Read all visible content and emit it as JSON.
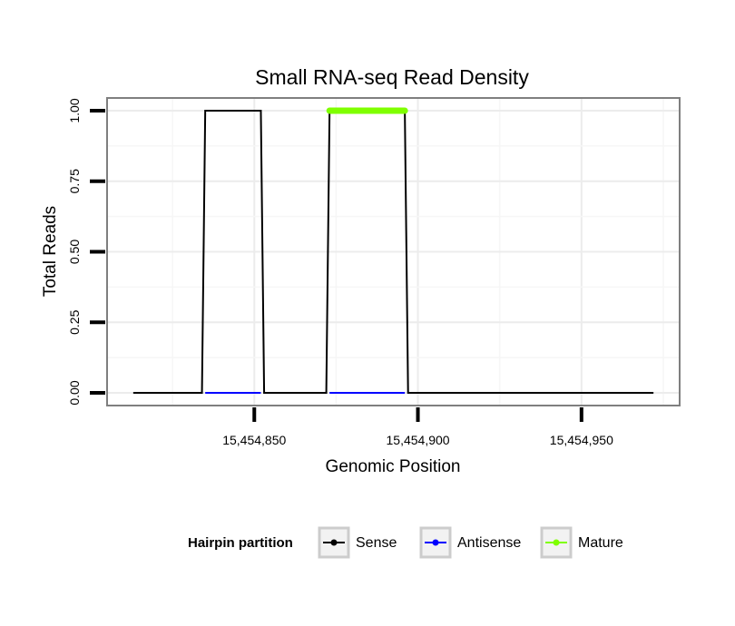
{
  "chart_data": {
    "type": "line",
    "title": "Small RNA-seq Read Density",
    "xlabel": "Genomic Position",
    "ylabel": "Total Reads",
    "xlim": [
      15454805,
      15454980
    ],
    "ylim": [
      -0.045,
      1.045
    ],
    "x_ticks": [
      15454850,
      15454900,
      15454950
    ],
    "x_tick_labels": [
      "15,454,850",
      "15,454,900",
      "15,454,950"
    ],
    "y_ticks": [
      0,
      0.25,
      0.5,
      0.75,
      1
    ],
    "y_tick_labels": [
      "0.00",
      "0.25",
      "0.50",
      "0.75",
      "1.00"
    ],
    "grid": true,
    "legend_position": "bottom",
    "legend_title": "Hairpin partition",
    "series": [
      {
        "name": "Sense",
        "color": "#000000",
        "x": [
          15454813,
          15454834,
          15454835,
          15454852,
          15454853,
          15454872,
          15454873,
          15454896,
          15454897,
          15454972
        ],
        "y": [
          0,
          0,
          1,
          1,
          0,
          0,
          1,
          1,
          0,
          0
        ]
      },
      {
        "name": "Antisense",
        "color": "#0000ff",
        "x": [
          15454835,
          15454852,
          15454873,
          15454896
        ],
        "y": [
          0,
          0,
          0,
          0
        ],
        "segments": [
          [
            0,
            1
          ],
          [
            2,
            3
          ]
        ]
      },
      {
        "name": "Mature",
        "color": "#7fff00",
        "x": [
          15454873,
          15454896
        ],
        "y": [
          1,
          1
        ]
      }
    ]
  }
}
